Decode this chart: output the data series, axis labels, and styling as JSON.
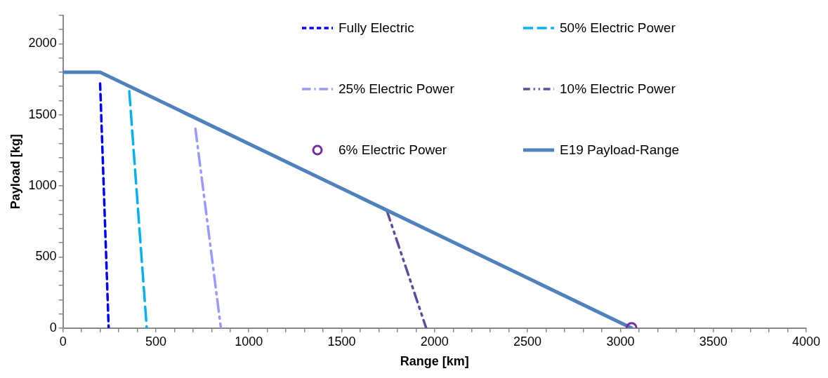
{
  "chart_data": {
    "type": "line",
    "xlabel": "Range [km]",
    "ylabel": "Payload [kg]",
    "xlim": [
      0,
      4000
    ],
    "ylim": [
      0,
      2200
    ],
    "xticks": [
      0,
      {
        "value": 100,
        "label": null
      },
      {
        "value": 200,
        "label": null
      },
      {
        "value": 300,
        "label": null
      },
      {
        "value": 400,
        "label": null
      },
      500,
      {
        "value": 600,
        "label": null
      },
      {
        "value": 700,
        "label": null
      },
      {
        "value": 800,
        "label": null
      },
      {
        "value": 900,
        "label": null
      },
      1000,
      {
        "value": 1100,
        "label": null
      },
      {
        "value": 1200,
        "label": null
      },
      {
        "value": 1300,
        "label": null
      },
      {
        "value": 1400,
        "label": null
      },
      1500,
      {
        "value": 1600,
        "label": null
      },
      {
        "value": 1700,
        "label": null
      },
      {
        "value": 1800,
        "label": null
      },
      {
        "value": 1900,
        "label": null
      },
      2000,
      {
        "value": 2100,
        "label": null
      },
      {
        "value": 2200,
        "label": null
      },
      {
        "value": 2300,
        "label": null
      },
      {
        "value": 2400,
        "label": null
      },
      2500,
      {
        "value": 2600,
        "label": null
      },
      {
        "value": 2700,
        "label": null
      },
      {
        "value": 2800,
        "label": null
      },
      {
        "value": 2900,
        "label": null
      },
      3000,
      {
        "value": 3100,
        "label": null
      },
      {
        "value": 3200,
        "label": null
      },
      {
        "value": 3300,
        "label": null
      },
      {
        "value": 3400,
        "label": null
      },
      3500,
      {
        "value": 3600,
        "label": null
      },
      {
        "value": 3700,
        "label": null
      },
      {
        "value": 3800,
        "label": null
      },
      {
        "value": 3900,
        "label": null
      },
      4000
    ],
    "yticks": [
      0,
      {
        "value": 100,
        "label": null
      },
      {
        "value": 200,
        "label": null
      },
      {
        "value": 300,
        "label": null
      },
      {
        "value": 400,
        "label": null
      },
      500,
      {
        "value": 600,
        "label": null
      },
      {
        "value": 700,
        "label": null
      },
      {
        "value": 800,
        "label": null
      },
      {
        "value": 900,
        "label": null
      },
      1000,
      {
        "value": 1100,
        "label": null
      },
      {
        "value": 1200,
        "label": null
      },
      {
        "value": 1300,
        "label": null
      },
      {
        "value": 1400,
        "label": null
      },
      1500,
      {
        "value": 1600,
        "label": null
      },
      {
        "value": 1700,
        "label": null
      },
      {
        "value": 1800,
        "label": null
      },
      {
        "value": 1900,
        "label": null
      },
      2000,
      {
        "value": 2100,
        "label": null
      },
      {
        "value": 2200,
        "label": null
      }
    ],
    "grid": false,
    "legend": "top",
    "series": [
      {
        "name": "Fully Electric",
        "color": "#0000ff",
        "line_style": "dashed",
        "marker": "none",
        "x": [
          200,
          246
        ],
        "values": [
          1720,
          0
        ]
      },
      {
        "name": "50% Electric Power",
        "color": "#00b0f0",
        "line_style": "dashed",
        "marker": "none",
        "x": [
          357,
          451
        ],
        "values": [
          1666,
          0
        ]
      },
      {
        "name": "25% Electric Power",
        "color": "#9999ff",
        "line_style": "dashed",
        "marker": "none",
        "x": [
          713,
          850
        ],
        "values": [
          1402,
          0
        ]
      },
      {
        "name": "10% Electric Power",
        "color": "#604a9b",
        "line_style": "dashed",
        "marker": "none",
        "x": [
          1744,
          1955
        ],
        "values": [
          823,
          0
        ]
      },
      {
        "name": "6% Electric Power",
        "color": "#7030a0",
        "type": "scatter",
        "marker": "circle",
        "x": [
          3060
        ],
        "values": [
          0
        ]
      },
      {
        "name": "E19 Payload-Range",
        "color": "#4f81bd",
        "line_style": "solid",
        "marker": "none",
        "x": [
          0,
          200,
          3060
        ],
        "values": [
          1800,
          1800,
          0
        ]
      }
    ]
  }
}
